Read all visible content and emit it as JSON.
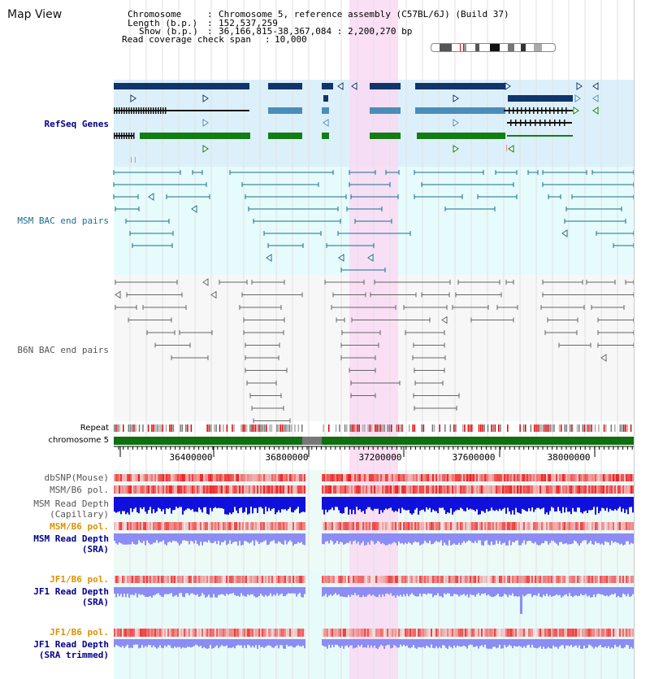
{
  "page": {
    "title": "Map View"
  },
  "info": {
    "chromosome_label": "Chromosome",
    "chromosome_value": "Chromosome 5, reference assembly (C57BL/6J) (Build 37)",
    "length_label": "Length (b.p.)",
    "length_value": "152,537,259",
    "show_label": "Show (b.p.)",
    "show_value": "36,166,815-38,367,084 : 2,200,270 bp",
    "coverage_label": "Read coverage check span",
    "coverage_value": "10,000"
  },
  "tracks": {
    "refseq": "RefSeq Genes",
    "msm_bac": "MSM BAC end pairs",
    "b6n_bac": "B6N BAC end pairs",
    "repeat": "Repeat",
    "chromosome": "chromosome 5",
    "dbsnp": "dbSNP(Mouse)",
    "msm_b6_pol": "MSM/B6 pol.",
    "msm_depth_cap_1": "MSM Read Depth",
    "msm_depth_cap_2": "(Capillary)",
    "msm_b6_pol2": "MSM/B6 pol.",
    "msm_depth_sra_1": "MSM Read Depth",
    "msm_depth_sra_2": "(SRA)",
    "jf1_b6_pol": "JF1/B6 pol.",
    "jf1_depth_sra_1": "JF1 Read Depth",
    "jf1_depth_sra_2": "(SRA)",
    "jf1_b6_pol2": "JF1/B6 pol.",
    "jf1_depth_trim_1": "JF1 Read Depth",
    "jf1_depth_trim_2": "(SRA trimmed)"
  },
  "ruler": {
    "ticks": [
      "36400000",
      "36800000",
      "37200000",
      "37600000",
      "38000000"
    ]
  },
  "colors": {
    "refseq_bg": "#dcf0fb",
    "msm_bg": "#e6fbfb",
    "b6n_bg": "#f7f7f7",
    "highlight": "#f9d9f3",
    "navy": "#10346b",
    "steel": "#4a8db7",
    "green": "#127d12",
    "bac_msm": "#1b6d8d",
    "bac_b6n": "#666666",
    "chrom_green": "#116e11",
    "depth_blue": "#1010dd",
    "depth_lav": "#8c8cf5",
    "label_orange": "#e09000",
    "label_blue": "#00008b"
  }
}
